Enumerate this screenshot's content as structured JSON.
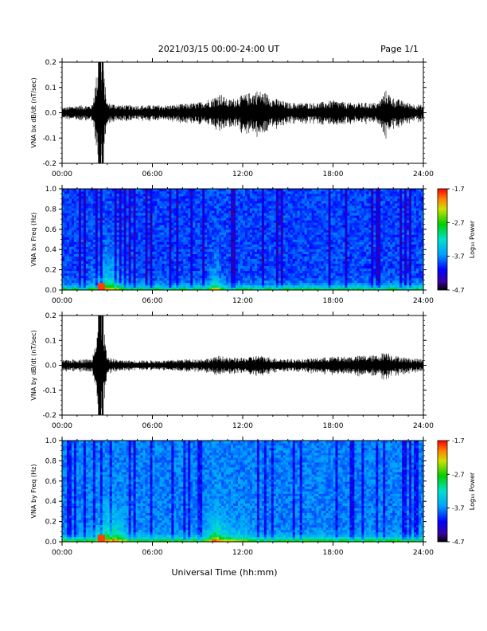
{
  "header": {
    "title": "2021/03/15  00:00-24:00 UT",
    "page": "Page 1/1"
  },
  "xaxis": {
    "label": "Universal Time (hh:mm)",
    "ticks": [
      "00:00",
      "06:00",
      "12:00",
      "18:00",
      "24:00"
    ]
  },
  "chart_data": [
    {
      "type": "line",
      "title": "",
      "xlabel": "",
      "ylabel": "VNA bx dB/dt (nT/sec)",
      "xlim": [
        0,
        24
      ],
      "ylim": [
        -0.2,
        0.2
      ],
      "yticks": [
        "0.2",
        "0.1",
        "0.0",
        "-0.1",
        "-0.2"
      ],
      "series": [
        {
          "x": [
            0,
            1,
            2,
            2.4,
            2.5,
            2.6,
            2.7,
            3,
            4,
            5,
            6,
            7,
            8,
            9,
            10,
            10.5,
            11,
            11.5,
            12,
            12.5,
            13,
            13.5,
            14,
            15,
            16,
            17,
            18,
            19,
            20,
            21,
            21.5,
            22,
            23,
            24
          ],
          "values": [
            0.02,
            0.03,
            0.03,
            0.2,
            0.2,
            0.2,
            0.2,
            0.04,
            0.03,
            0.03,
            0.03,
            0.03,
            0.035,
            0.04,
            0.06,
            0.08,
            0.05,
            0.06,
            0.07,
            0.08,
            0.09,
            0.08,
            0.06,
            0.04,
            0.04,
            0.04,
            0.05,
            0.04,
            0.04,
            0.04,
            0.09,
            0.06,
            0.04,
            0.03
          ]
        }
      ]
    },
    {
      "type": "heatmap",
      "title": "",
      "xlabel": "",
      "ylabel": "VNA bx Freq (Hz)",
      "xlim": [
        0,
        24
      ],
      "ylim": [
        0,
        1.0
      ],
      "yticks": [
        "1.0",
        "0.8",
        "0.6",
        "0.4",
        "0.2",
        "0.0"
      ],
      "colorbar": {
        "label": "Log₁₀ Power",
        "ticks": [
          "-1.7",
          "-2.7",
          "-3.7",
          "-4.7"
        ],
        "range": [
          -4.7,
          -1.7
        ]
      }
    },
    {
      "type": "line",
      "title": "",
      "xlabel": "",
      "ylabel": "VNA by dB/dt (nT/sec)",
      "xlim": [
        0,
        24
      ],
      "ylim": [
        -0.2,
        0.2
      ],
      "yticks": [
        "0.2",
        "0.1",
        "0.0",
        "-0.1",
        "-0.2"
      ],
      "series": [
        {
          "x": [
            0,
            1,
            2,
            2.4,
            2.5,
            2.6,
            2.7,
            3,
            4,
            5,
            6,
            7,
            8,
            9,
            10,
            10.5,
            11,
            11.5,
            12,
            12.5,
            13,
            13.5,
            14,
            15,
            16,
            17,
            18,
            19,
            20,
            21,
            21.5,
            22,
            23,
            24
          ],
          "values": [
            0.02,
            0.025,
            0.025,
            0.2,
            0.2,
            0.2,
            0.2,
            0.03,
            0.02,
            0.02,
            0.02,
            0.02,
            0.025,
            0.025,
            0.03,
            0.04,
            0.03,
            0.03,
            0.03,
            0.035,
            0.04,
            0.035,
            0.03,
            0.025,
            0.025,
            0.03,
            0.035,
            0.035,
            0.04,
            0.04,
            0.06,
            0.04,
            0.03,
            0.025
          ]
        }
      ]
    },
    {
      "type": "heatmap",
      "title": "",
      "xlabel": "",
      "ylabel": "VNA by Freq (Hz)",
      "xlim": [
        0,
        24
      ],
      "ylim": [
        0,
        1.0
      ],
      "yticks": [
        "1.0",
        "0.8",
        "0.6",
        "0.4",
        "0.2",
        "0.0"
      ],
      "colorbar": {
        "label": "Log₁₀ Power",
        "ticks": [
          "-1.7",
          "-2.7",
          "-3.7",
          "-4.7"
        ],
        "range": [
          -4.7,
          -1.7
        ]
      }
    }
  ]
}
